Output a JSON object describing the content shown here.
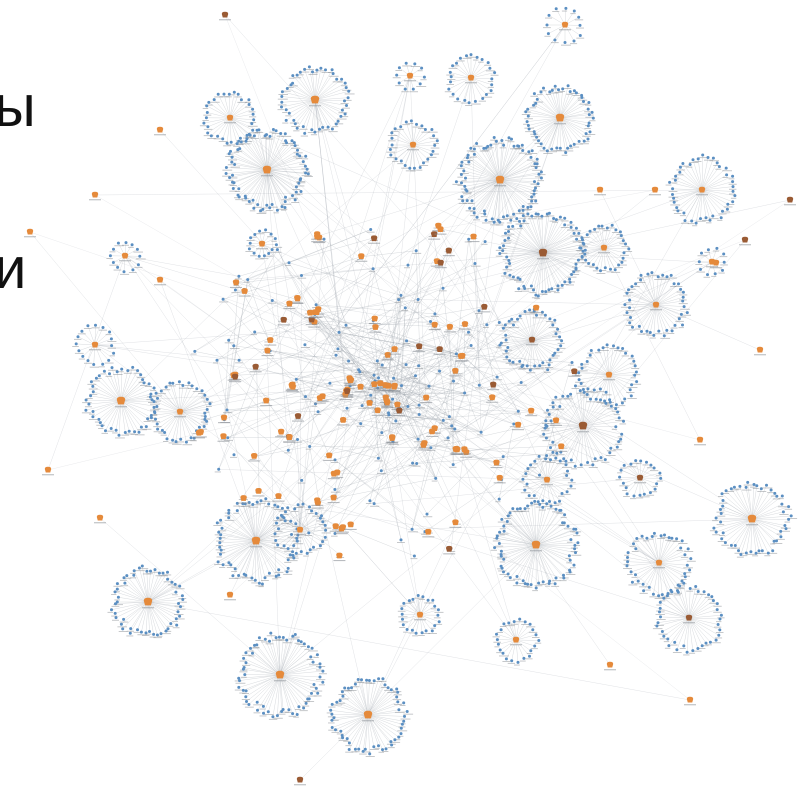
{
  "slide": {
    "text_fragments": [
      "ы",
      "и"
    ]
  },
  "network": {
    "edge_color": "#9ca3ab",
    "leaf_node_color": "#5b8fc2",
    "hub_node_color": "#e58a3b",
    "dark_hub_color": "#9a5b34",
    "label_color": "#8a8f96"
  }
}
